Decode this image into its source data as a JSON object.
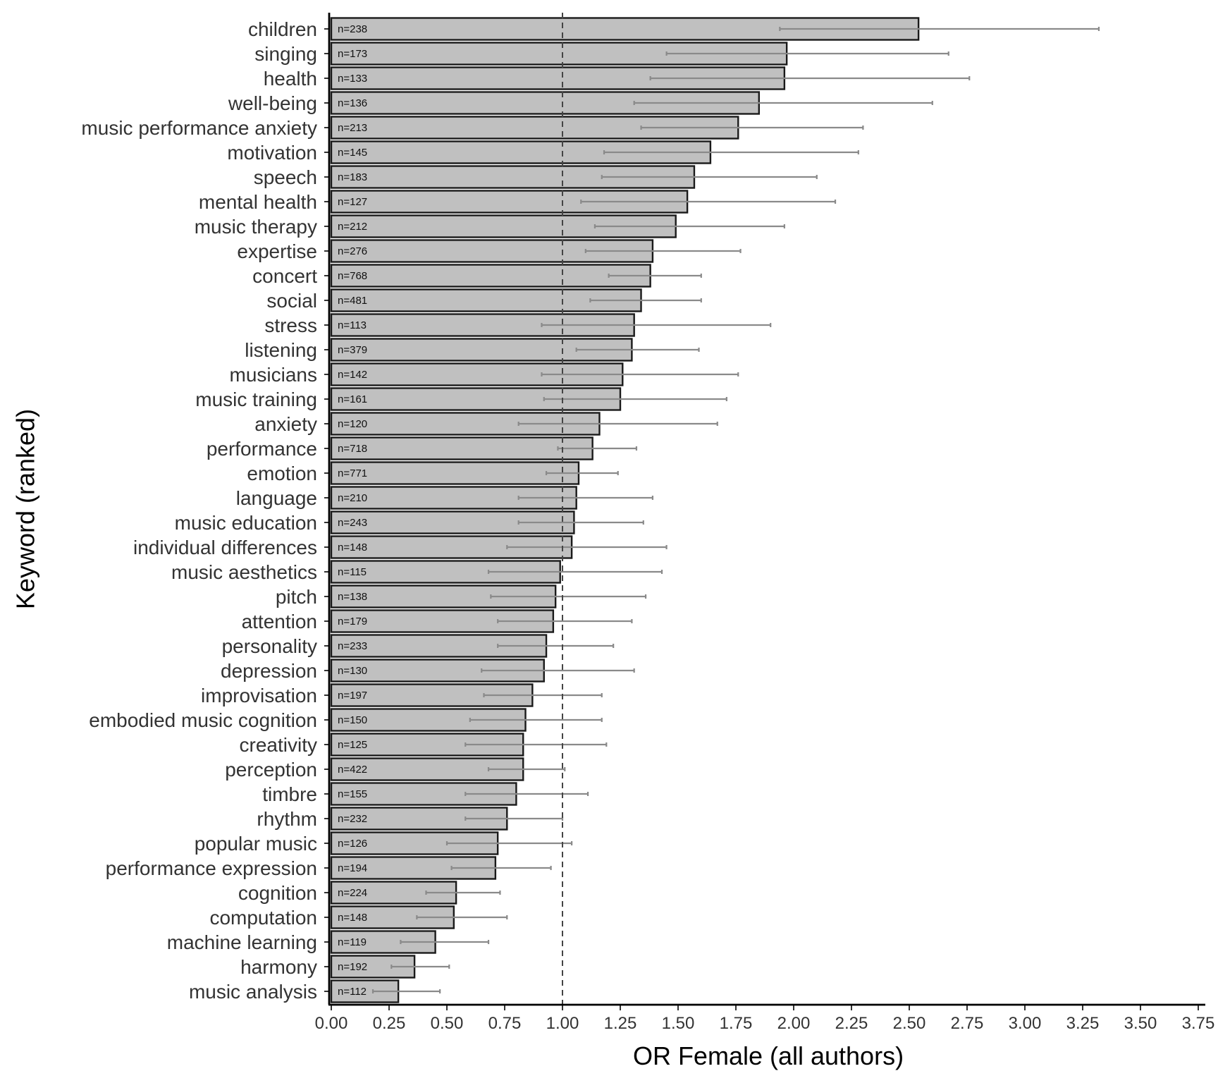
{
  "chart_data": {
    "type": "bar",
    "orientation": "horizontal",
    "title": "",
    "xlabel": "OR Female (all authors)",
    "ylabel": "Keyword (ranked)",
    "xlim": [
      0,
      3.8
    ],
    "xticks": [
      0,
      0.25,
      0.5,
      0.75,
      1,
      1.25,
      1.5,
      1.75,
      2,
      2.25,
      2.5,
      2.75,
      3,
      3.25,
      3.5,
      3.75
    ],
    "xtick_labels": [
      "0.00",
      "0.25",
      "0.50",
      "0.75",
      "1.00",
      "1.25",
      "1.50",
      "1.75",
      "2.00",
      "2.25",
      "2.50",
      "2.75",
      "3.00",
      "3.25",
      "3.50",
      "3.75"
    ],
    "reference_line": 1.0,
    "grid": false,
    "categories": [
      "children",
      "singing",
      "health",
      "well-being",
      "music performance anxiety",
      "motivation",
      "speech",
      "mental health",
      "music therapy",
      "expertise",
      "concert",
      "social",
      "stress",
      "listening",
      "musicians",
      "music training",
      "anxiety",
      "performance",
      "emotion",
      "language",
      "music education",
      "individual differences",
      "music aesthetics",
      "pitch",
      "attention",
      "personality",
      "depression",
      "improvisation",
      "embodied music cognition",
      "creativity",
      "perception",
      "timbre",
      "rhythm",
      "popular music",
      "performance expression",
      "cognition",
      "computation",
      "machine learning",
      "harmony",
      "music analysis"
    ],
    "values": [
      2.54,
      1.97,
      1.96,
      1.85,
      1.76,
      1.64,
      1.57,
      1.54,
      1.49,
      1.39,
      1.38,
      1.34,
      1.31,
      1.3,
      1.26,
      1.25,
      1.16,
      1.13,
      1.07,
      1.06,
      1.05,
      1.04,
      0.99,
      0.97,
      0.96,
      0.93,
      0.92,
      0.87,
      0.84,
      0.83,
      0.83,
      0.8,
      0.76,
      0.72,
      0.71,
      0.54,
      0.53,
      0.45,
      0.36,
      0.29
    ],
    "ci_low": [
      1.94,
      1.45,
      1.38,
      1.31,
      1.34,
      1.18,
      1.17,
      1.08,
      1.14,
      1.1,
      1.2,
      1.12,
      0.91,
      1.06,
      0.91,
      0.92,
      0.81,
      0.98,
      0.93,
      0.81,
      0.81,
      0.76,
      0.68,
      0.69,
      0.72,
      0.72,
      0.65,
      0.66,
      0.6,
      0.58,
      0.68,
      0.58,
      0.58,
      0.5,
      0.52,
      0.41,
      0.37,
      0.3,
      0.26,
      0.18
    ],
    "ci_high": [
      3.32,
      2.67,
      2.76,
      2.6,
      2.3,
      2.28,
      2.1,
      2.18,
      1.96,
      1.77,
      1.6,
      1.6,
      1.9,
      1.59,
      1.76,
      1.71,
      1.67,
      1.32,
      1.24,
      1.39,
      1.35,
      1.45,
      1.43,
      1.36,
      1.3,
      1.22,
      1.31,
      1.17,
      1.17,
      1.19,
      1.01,
      1.11,
      1.0,
      1.04,
      0.95,
      0.73,
      0.76,
      0.68,
      0.51,
      0.47
    ],
    "n_labels": [
      "n=238",
      "n=173",
      "n=133",
      "n=136",
      "n=213",
      "n=145",
      "n=183",
      "n=127",
      "n=212",
      "n=276",
      "n=768",
      "n=481",
      "n=113",
      "n=379",
      "n=142",
      "n=161",
      "n=120",
      "n=718",
      "n=771",
      "n=210",
      "n=243",
      "n=148",
      "n=115",
      "n=138",
      "n=179",
      "n=233",
      "n=130",
      "n=197",
      "n=150",
      "n=125",
      "n=422",
      "n=155",
      "n=232",
      "n=126",
      "n=194",
      "n=224",
      "n=148",
      "n=119",
      "n=192",
      "n=112"
    ],
    "colors": {
      "bar_fill": "#c0c0c0",
      "bar_stroke": "#1a1a1a",
      "error_bar": "#8a8a8a",
      "reference_line": "#444444"
    }
  }
}
